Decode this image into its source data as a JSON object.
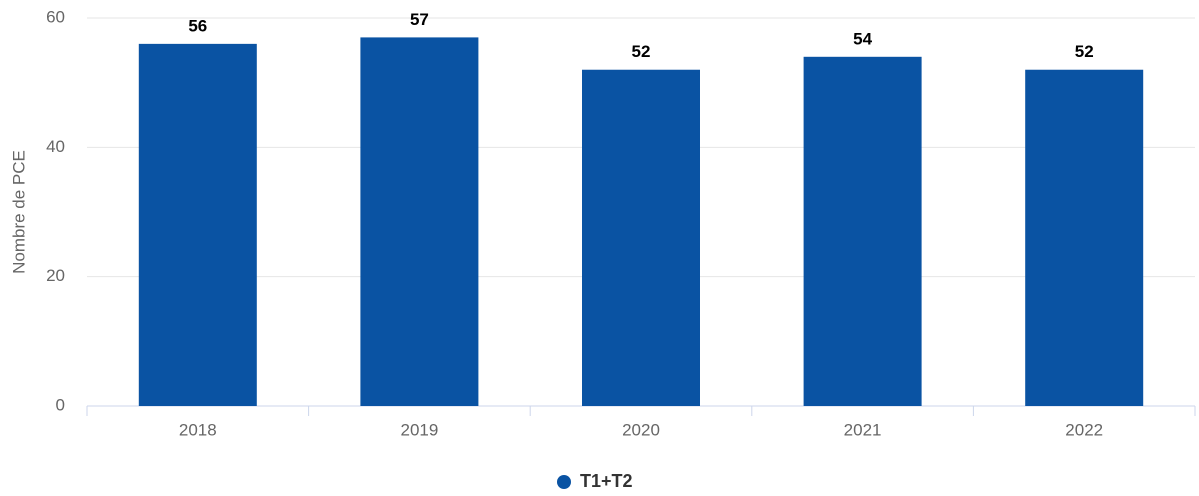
{
  "chart_data": {
    "type": "bar",
    "y_label": "Nombre de PCE",
    "categories": [
      "2018",
      "2019",
      "2020",
      "2021",
      "2022"
    ],
    "series": [
      {
        "name": "T1+T2",
        "color": "#0a53a3",
        "values": [
          56,
          57,
          52,
          54,
          52
        ]
      }
    ],
    "ylim": [
      0,
      60
    ],
    "yticks": [
      0,
      20,
      40,
      60
    ],
    "grid": true,
    "legend": "bottom"
  }
}
